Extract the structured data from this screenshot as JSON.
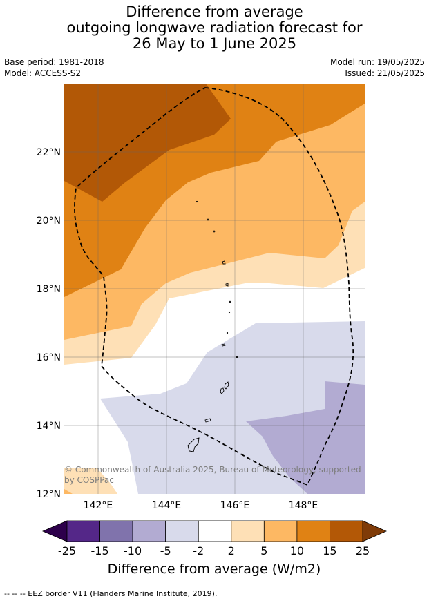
{
  "header": {
    "title_lines": [
      "Difference from average",
      "outgoing longwave radiation forecast for",
      "26 May to 1 June 2025"
    ],
    "base_period": "Base period: 1981-2018",
    "model": "Model: ACCESS-S2",
    "model_run": "Model run: 19/05/2025",
    "issued": "Issued: 21/05/2025"
  },
  "map": {
    "lat_ticks": [
      "22°N",
      "20°N",
      "18°N",
      "16°N",
      "14°N",
      "12°N"
    ],
    "lon_ticks": [
      "142°E",
      "144°E",
      "146°E",
      "148°E"
    ],
    "copyright_lines": [
      "© Commonwealth of Australia 2025, Bureau of Meteorology, supported",
      "by COSPPac"
    ],
    "colors": {
      "c15_25": "#b25806",
      "c10_15": "#e08214",
      "c5_10": "#fdb863",
      "c2_5": "#fee0b6",
      "c0": "#ffffff",
      "cm5_m2": "#d8daeb",
      "cm10_m5": "#b2abd2"
    }
  },
  "colorbar": {
    "labels": [
      "-25",
      "-15",
      "-10",
      "-5",
      "-2",
      "2",
      "5",
      "10",
      "15",
      "25"
    ],
    "colors": [
      "#2d004b",
      "#542788",
      "#8073ac",
      "#b2abd2",
      "#d8daeb",
      "#ffffff",
      "#fee0b6",
      "#fdb863",
      "#e08214",
      "#b35806",
      "#7f3b08"
    ],
    "title": "Difference from average (W/m2)"
  },
  "footnote": "-- -- -- EEZ border V11 (Flanders Marine Institute, 2019)."
}
